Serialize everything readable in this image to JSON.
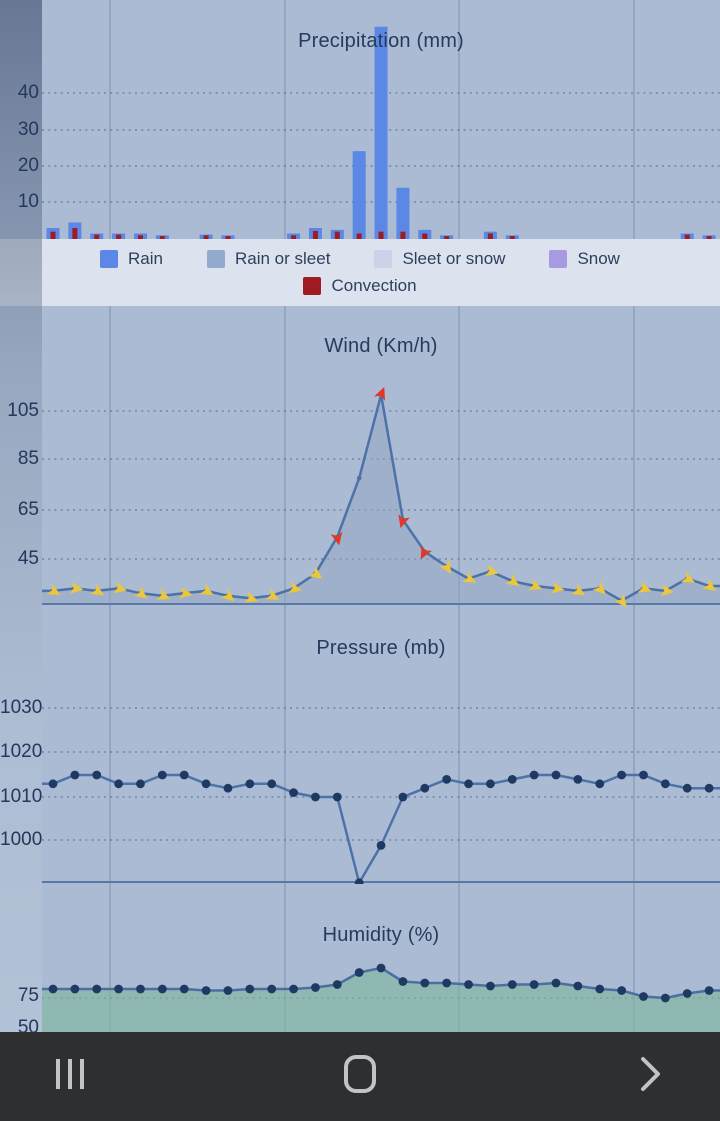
{
  "colors": {
    "page_bg": "#b3c3d9",
    "legend_bg": "#dce3ee",
    "title_text": "#273a5c",
    "rain": "#5b87e5",
    "rain_or_sleet": "#93aacf",
    "sleet_or_snow": "#ccd3e8",
    "snow": "#a89ae0",
    "convection": "#9e1b22",
    "wind_line": "#4c72a8",
    "wind_fill": "rgba(148,166,196,0.50)",
    "arrow_yellow": "#ecc73a",
    "arrow_red": "#e0392b",
    "pressure_line": "#4c72a8",
    "dot": "#1e3a63",
    "humidity_line": "#4b6f9e",
    "humidity_fill": "rgba(126,182,157,0.60)",
    "baseline": "#5878a8",
    "grid_dot": "rgba(70,92,128,0.42)",
    "navbar_bg": "#2d2f31",
    "navbar_icon": "#c0c4c7"
  },
  "legend": {
    "items": [
      {
        "label": "Rain",
        "color": "#5b87e5"
      },
      {
        "label": "Rain or sleet",
        "color": "#93aacf"
      },
      {
        "label": "Sleet or snow",
        "color": "#ccd3e8"
      },
      {
        "label": "Snow",
        "color": "#a89ae0"
      }
    ],
    "row2": [
      {
        "label": "Convection",
        "color": "#9e1b22"
      }
    ]
  },
  "navbar": {
    "icons": [
      "recents-icon",
      "home-icon",
      "back-icon"
    ]
  },
  "chart_data": [
    {
      "type": "bar",
      "title": "Precipitation (mm)",
      "ylabel": "mm",
      "yticks": [
        40,
        30,
        20,
        10
      ],
      "ylim": [
        0,
        65
      ],
      "grid": "dotted-horizontal",
      "series": [
        {
          "name": "Rain",
          "values": [
            3,
            4.5,
            1.5,
            1.5,
            1.5,
            1,
            0,
            1.2,
            1,
            0,
            0,
            1.5,
            3,
            2.5,
            24,
            58,
            14,
            2.5,
            1,
            0,
            2,
            1,
            0,
            0,
            0,
            0,
            0,
            0,
            0,
            1.5,
            1
          ]
        },
        {
          "name": "Convection",
          "values": [
            2,
            3,
            1.2,
            1.2,
            1,
            0.8,
            0,
            1,
            0.8,
            0,
            0,
            1,
            2.2,
            2,
            1.5,
            2,
            2,
            1.5,
            0.8,
            0,
            1.5,
            0.8,
            0,
            0,
            0,
            0,
            0,
            0,
            0,
            1.2,
            0.8
          ]
        }
      ]
    },
    {
      "type": "line",
      "title": "Wind (Km/h)",
      "ylabel": "Km/h",
      "yticks": [
        105,
        85,
        65,
        45
      ],
      "ylim": [
        25,
        130
      ],
      "grid": "dotted-horizontal",
      "values": [
        32,
        33,
        32,
        33,
        31,
        30,
        31,
        32,
        30,
        29,
        30,
        33,
        39,
        54,
        78,
        112,
        61,
        48,
        42,
        37,
        40,
        36,
        34,
        33,
        32,
        33,
        28,
        33,
        32,
        37,
        34
      ],
      "arrow_dirs": [
        118,
        98,
        122,
        104,
        128,
        112,
        100,
        120,
        132,
        108,
        118,
        102,
        125,
        168,
        155,
        22,
        196,
        208,
        150,
        118,
        104,
        126,
        112,
        100,
        122,
        135,
        142,
        108,
        98,
        116,
        126
      ],
      "arrow_colors": [
        "yellow",
        "yellow",
        "yellow",
        "yellow",
        "yellow",
        "yellow",
        "yellow",
        "yellow",
        "yellow",
        "yellow",
        "yellow",
        "yellow",
        "yellow",
        "red",
        "none",
        "red",
        "red",
        "red",
        "yellow",
        "yellow",
        "yellow",
        "yellow",
        "yellow",
        "yellow",
        "yellow",
        "yellow",
        "yellow",
        "yellow",
        "yellow",
        "yellow",
        "yellow"
      ]
    },
    {
      "type": "line",
      "title": "Pressure (mb)",
      "ylabel": "mb",
      "yticks": [
        1030,
        1020,
        1010,
        1000
      ],
      "ylim": [
        988,
        1038
      ],
      "grid": "dotted-horizontal",
      "values": [
        1013,
        1015,
        1015,
        1013,
        1013,
        1015,
        1015,
        1013,
        1012,
        1013,
        1013,
        1011,
        1010,
        1010,
        990.5,
        999,
        1010,
        1012,
        1014,
        1013,
        1013,
        1014,
        1015,
        1015,
        1014,
        1013,
        1015,
        1015,
        1013,
        1012,
        1012
      ]
    },
    {
      "type": "area",
      "title": "Humidity (%)",
      "ylabel": "%",
      "yticks": [
        75,
        50
      ],
      "ylim": [
        50,
        100
      ],
      "grid": "dotted-horizontal",
      "values": [
        81,
        81,
        81,
        81,
        81,
        81,
        81,
        80,
        80,
        81,
        81,
        81,
        82,
        84,
        92,
        95,
        86,
        85,
        85,
        84,
        83,
        84,
        84,
        85,
        83,
        81,
        80,
        76,
        75,
        78,
        80
      ]
    }
  ]
}
